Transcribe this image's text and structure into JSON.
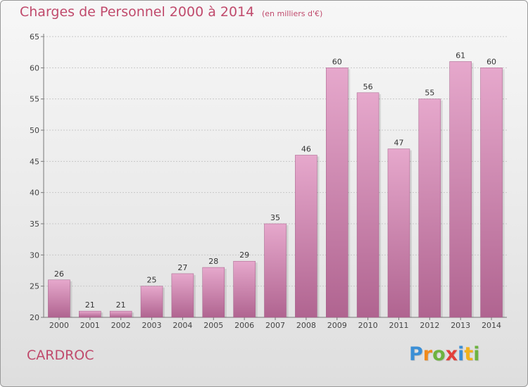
{
  "title": "Charges de Personnel 2000 à 2014",
  "subtitle": "(en milliers d'€)",
  "commune": "CARDROC",
  "logo": {
    "letters": [
      {
        "char": "P",
        "color": "#3b8fd6"
      },
      {
        "char": "r",
        "color": "#f08a1c"
      },
      {
        "char": "o",
        "color": "#6db33f"
      },
      {
        "char": "x",
        "color": "#e2403a"
      },
      {
        "char": "i",
        "color": "#3b8fd6"
      },
      {
        "char": "t",
        "color": "#f2b21b"
      },
      {
        "char": "i",
        "color": "#6db33f"
      }
    ]
  },
  "colors": {
    "bar_light": "#e6a8cc",
    "bar_dark": "#b06490",
    "accent_text": "#c04a6c"
  },
  "chart_data": {
    "type": "bar",
    "title": "Charges de Personnel 2000 à 2014",
    "subtitle": "(en milliers d'€)",
    "categories": [
      "2000",
      "2001",
      "2002",
      "2003",
      "2004",
      "2005",
      "2006",
      "2007",
      "2008",
      "2009",
      "2010",
      "2011",
      "2012",
      "2013",
      "2014"
    ],
    "values": [
      26,
      21,
      21,
      25,
      27,
      28,
      29,
      35,
      46,
      60,
      56,
      47,
      55,
      61,
      60
    ],
    "ylim": [
      20,
      65
    ],
    "yticks": [
      20,
      25,
      30,
      35,
      40,
      45,
      50,
      55,
      60,
      65
    ],
    "grid": true,
    "data_labels": true
  }
}
